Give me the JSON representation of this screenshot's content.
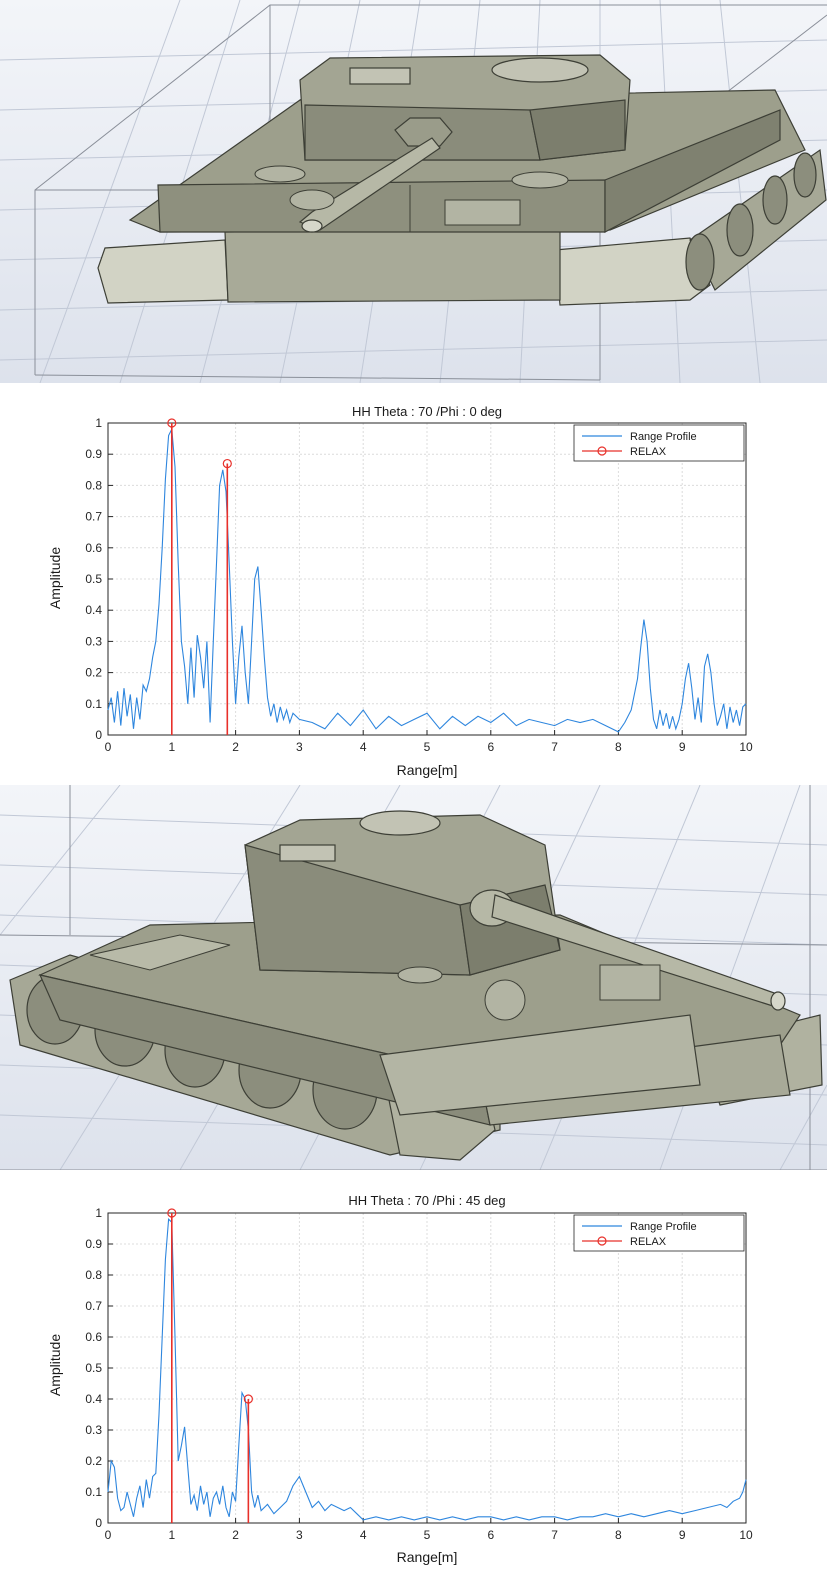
{
  "colors": {
    "range_profile": "#2e86de",
    "relax": "#e8302a",
    "tank_body": "#9d9f8c",
    "tank_dark": "#6e7062",
    "tank_light": "#cfd0c2",
    "floor": "#e9ecf2",
    "floor_grid": "#b9c0cf"
  },
  "figures": [
    {
      "name": "tank-model-phi-0",
      "view": "front"
    },
    {
      "name": "tank-model-phi-45",
      "view": "oblique"
    }
  ],
  "chart_data": [
    {
      "type": "line",
      "title": "HH Theta : 70 /Phi : 0 deg",
      "xlabel": "Range[m]",
      "ylabel": "Amplitude",
      "xlim": [
        0,
        10
      ],
      "ylim": [
        0,
        1
      ],
      "xticks": [
        "0",
        "1",
        "2",
        "3",
        "4",
        "5",
        "6",
        "7",
        "8",
        "9",
        "10"
      ],
      "yticks": [
        "0",
        "0.1",
        "0.2",
        "0.3",
        "0.4",
        "0.5",
        "0.6",
        "0.7",
        "0.8",
        "0.9",
        "1"
      ],
      "grid": true,
      "legend_position": "top-right",
      "series": [
        {
          "name": "Range Profile",
          "style": "line",
          "x": [
            0,
            0.05,
            0.1,
            0.15,
            0.2,
            0.25,
            0.3,
            0.35,
            0.4,
            0.45,
            0.5,
            0.55,
            0.6,
            0.65,
            0.7,
            0.75,
            0.8,
            0.85,
            0.9,
            0.95,
            1.0,
            1.05,
            1.1,
            1.15,
            1.2,
            1.25,
            1.3,
            1.35,
            1.4,
            1.45,
            1.5,
            1.55,
            1.6,
            1.65,
            1.7,
            1.75,
            1.8,
            1.85,
            1.9,
            1.95,
            2.0,
            2.05,
            2.1,
            2.15,
            2.2,
            2.25,
            2.3,
            2.35,
            2.4,
            2.45,
            2.5,
            2.55,
            2.6,
            2.65,
            2.7,
            2.75,
            2.8,
            2.85,
            2.9,
            3.0,
            3.2,
            3.4,
            3.6,
            3.8,
            4.0,
            4.2,
            4.4,
            4.6,
            4.8,
            5.0,
            5.2,
            5.4,
            5.6,
            5.8,
            6.0,
            6.2,
            6.4,
            6.6,
            6.8,
            7.0,
            7.2,
            7.4,
            7.6,
            7.8,
            8.0,
            8.1,
            8.2,
            8.3,
            8.35,
            8.4,
            8.45,
            8.5,
            8.55,
            8.6,
            8.65,
            8.7,
            8.75,
            8.8,
            8.85,
            8.9,
            8.95,
            9.0,
            9.05,
            9.1,
            9.15,
            9.2,
            9.25,
            9.3,
            9.35,
            9.4,
            9.45,
            9.5,
            9.55,
            9.6,
            9.65,
            9.7,
            9.75,
            9.8,
            9.85,
            9.9,
            9.95,
            10.0
          ],
          "y": [
            0.08,
            0.12,
            0.04,
            0.14,
            0.03,
            0.15,
            0.06,
            0.13,
            0.02,
            0.12,
            0.05,
            0.16,
            0.14,
            0.18,
            0.25,
            0.3,
            0.42,
            0.6,
            0.82,
            0.96,
            0.98,
            0.86,
            0.55,
            0.3,
            0.22,
            0.1,
            0.28,
            0.12,
            0.32,
            0.25,
            0.15,
            0.3,
            0.04,
            0.3,
            0.55,
            0.8,
            0.85,
            0.78,
            0.55,
            0.3,
            0.1,
            0.25,
            0.35,
            0.2,
            0.1,
            0.3,
            0.5,
            0.54,
            0.4,
            0.25,
            0.12,
            0.06,
            0.1,
            0.04,
            0.09,
            0.05,
            0.08,
            0.04,
            0.07,
            0.05,
            0.04,
            0.02,
            0.07,
            0.03,
            0.08,
            0.02,
            0.06,
            0.03,
            0.05,
            0.07,
            0.02,
            0.06,
            0.03,
            0.06,
            0.04,
            0.07,
            0.03,
            0.05,
            0.04,
            0.03,
            0.05,
            0.04,
            0.05,
            0.03,
            0.01,
            0.04,
            0.08,
            0.18,
            0.28,
            0.37,
            0.3,
            0.15,
            0.05,
            0.02,
            0.08,
            0.03,
            0.07,
            0.02,
            0.06,
            0.02,
            0.05,
            0.1,
            0.18,
            0.23,
            0.15,
            0.05,
            0.12,
            0.04,
            0.22,
            0.26,
            0.2,
            0.1,
            0.03,
            0.06,
            0.1,
            0.02,
            0.09,
            0.04,
            0.08,
            0.03,
            0.09,
            0.1
          ]
        },
        {
          "name": "RELAX",
          "style": "stem",
          "x": [
            1.0,
            1.87
          ],
          "y": [
            1.0,
            0.87
          ]
        }
      ]
    },
    {
      "type": "line",
      "title": "HH Theta : 70 /Phi : 45 deg",
      "xlabel": "Range[m]",
      "ylabel": "Amplitude",
      "xlim": [
        0,
        10
      ],
      "ylim": [
        0,
        1
      ],
      "xticks": [
        "0",
        "1",
        "2",
        "3",
        "4",
        "5",
        "6",
        "7",
        "8",
        "9",
        "10"
      ],
      "yticks": [
        "0",
        "0.1",
        "0.2",
        "0.3",
        "0.4",
        "0.5",
        "0.6",
        "0.7",
        "0.8",
        "0.9",
        "1"
      ],
      "grid": true,
      "legend_position": "top-right",
      "series": [
        {
          "name": "Range Profile",
          "style": "line",
          "x": [
            0,
            0.05,
            0.1,
            0.15,
            0.2,
            0.25,
            0.3,
            0.35,
            0.4,
            0.45,
            0.5,
            0.55,
            0.6,
            0.65,
            0.7,
            0.75,
            0.8,
            0.85,
            0.9,
            0.95,
            1.0,
            1.05,
            1.1,
            1.15,
            1.2,
            1.25,
            1.3,
            1.35,
            1.4,
            1.45,
            1.5,
            1.55,
            1.6,
            1.65,
            1.7,
            1.75,
            1.8,
            1.85,
            1.9,
            1.95,
            2.0,
            2.05,
            2.1,
            2.15,
            2.2,
            2.25,
            2.3,
            2.35,
            2.4,
            2.5,
            2.6,
            2.7,
            2.8,
            2.9,
            3.0,
            3.1,
            3.2,
            3.3,
            3.4,
            3.5,
            3.6,
            3.7,
            3.8,
            3.9,
            4.0,
            4.2,
            4.4,
            4.6,
            4.8,
            5.0,
            5.2,
            5.4,
            5.6,
            5.8,
            6.0,
            6.2,
            6.4,
            6.6,
            6.8,
            7.0,
            7.2,
            7.4,
            7.6,
            7.8,
            8.0,
            8.2,
            8.4,
            8.6,
            8.8,
            9.0,
            9.2,
            9.4,
            9.6,
            9.7,
            9.8,
            9.9,
            9.95,
            10.0
          ],
          "y": [
            0.1,
            0.2,
            0.18,
            0.08,
            0.04,
            0.05,
            0.1,
            0.06,
            0.02,
            0.08,
            0.12,
            0.05,
            0.14,
            0.08,
            0.15,
            0.16,
            0.35,
            0.6,
            0.85,
            0.98,
            0.97,
            0.6,
            0.2,
            0.25,
            0.31,
            0.18,
            0.06,
            0.09,
            0.04,
            0.12,
            0.06,
            0.1,
            0.02,
            0.08,
            0.1,
            0.06,
            0.12,
            0.05,
            0.02,
            0.1,
            0.07,
            0.25,
            0.42,
            0.4,
            0.3,
            0.1,
            0.05,
            0.09,
            0.04,
            0.06,
            0.03,
            0.05,
            0.07,
            0.12,
            0.15,
            0.1,
            0.05,
            0.07,
            0.04,
            0.06,
            0.05,
            0.04,
            0.05,
            0.03,
            0.01,
            0.02,
            0.01,
            0.02,
            0.01,
            0.02,
            0.01,
            0.02,
            0.01,
            0.02,
            0.02,
            0.01,
            0.02,
            0.01,
            0.02,
            0.02,
            0.01,
            0.02,
            0.02,
            0.03,
            0.02,
            0.03,
            0.02,
            0.03,
            0.04,
            0.03,
            0.04,
            0.05,
            0.06,
            0.05,
            0.07,
            0.08,
            0.1,
            0.14
          ]
        },
        {
          "name": "RELAX",
          "style": "stem",
          "x": [
            1.0,
            2.2
          ],
          "y": [
            1.0,
            0.4
          ]
        }
      ]
    }
  ]
}
